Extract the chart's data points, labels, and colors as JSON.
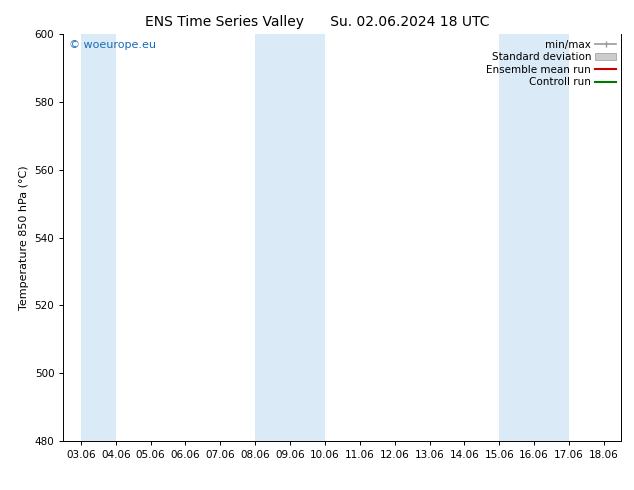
{
  "title_left": "ENS Time Series Valley",
  "title_right": "Su. 02.06.2024 18 UTC",
  "ylabel": "Temperature 850 hPa (°C)",
  "yticks": [
    480,
    500,
    520,
    540,
    560,
    580,
    600
  ],
  "ylim": [
    480,
    600
  ],
  "xtick_labels": [
    "03.06",
    "04.06",
    "05.06",
    "06.06",
    "07.06",
    "08.06",
    "09.06",
    "10.06",
    "11.06",
    "12.06",
    "13.06",
    "14.06",
    "15.06",
    "16.06",
    "17.06",
    "18.06"
  ],
  "shaded_ranges": [
    [
      0,
      1
    ],
    [
      5,
      7
    ],
    [
      12,
      14
    ]
  ],
  "band_color": "#daeaf7",
  "watermark_text": "© woeurope.eu",
  "watermark_color": "#1a6bb5",
  "legend_entries": [
    {
      "label": "min/max",
      "type": "minmax",
      "color": "#999999"
    },
    {
      "label": "Standard deviation",
      "type": "stddev",
      "color": "#cccccc"
    },
    {
      "label": "Ensemble mean run",
      "type": "line",
      "color": "#cc0000"
    },
    {
      "label": "Controll run",
      "type": "line",
      "color": "#007700"
    }
  ],
  "bg_color": "#ffffff",
  "spine_color": "#000000",
  "title_fontsize": 10,
  "tick_fontsize": 7.5,
  "ylabel_fontsize": 8,
  "legend_fontsize": 7.5,
  "watermark_fontsize": 8
}
